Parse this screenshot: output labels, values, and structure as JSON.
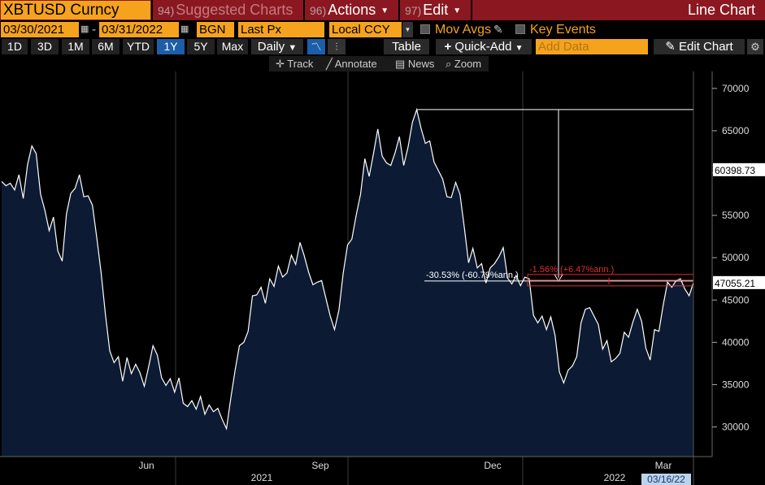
{
  "toolbar": {
    "ticker": "XBTUSD Curncy",
    "suggested_num": "94)",
    "suggested_label": "Suggested Charts",
    "actions_num": "96)",
    "actions_label": "Actions",
    "edit_num": "97)",
    "edit_label": "Edit",
    "title": "Line Chart"
  },
  "settings": {
    "start_date": "03/30/2021",
    "separator": "-",
    "end_date": "03/31/2022",
    "source": "BGN",
    "field": "Last Px",
    "currency": "Local CCY",
    "mov_avgs": "Mov Avgs",
    "key_events": "Key Events"
  },
  "periods": [
    "1D",
    "3D",
    "1M",
    "6M",
    "YTD",
    "1Y",
    "5Y",
    "Max"
  ],
  "selected_period": "1Y",
  "frequency": "Daily",
  "table_label": "Table",
  "quick_add_label": "Quick-Add",
  "add_data_placeholder": "Add Data",
  "edit_chart_label": "Edit Chart",
  "tools": {
    "track": "Track",
    "annotate": "Annotate",
    "news": "News",
    "zoom": "Zoom"
  },
  "colors": {
    "accent": "#f5a31c",
    "title_bar": "#8b1820",
    "selected": "#1c5ea8",
    "area_fill": "#0c1b33",
    "line": "#ffffff",
    "annotation_red": "#e03030"
  },
  "chart_data": {
    "type": "area",
    "series": [
      {
        "values": [
          59000,
          58500,
          58800,
          58000,
          59800,
          57000,
          61000,
          63200,
          62300,
          57500,
          55600,
          53200,
          54800,
          50800,
          49600,
          55200,
          57600,
          58200,
          59800,
          57200,
          57300,
          56200,
          52400,
          48300,
          43300,
          39000,
          37600,
          38300,
          35400,
          38200,
          36300,
          37400,
          36400,
          34800,
          37100,
          39600,
          38500,
          35800,
          34900,
          35700,
          34100,
          35800,
          32800,
          32400,
          33100,
          32100,
          33600,
          31500,
          32600,
          31800,
          32200,
          30900,
          29800,
          33400,
          36700,
          39600,
          40000,
          41300,
          45500,
          45600,
          46500,
          44600,
          47500,
          46600,
          49000,
          47700,
          48200,
          50300,
          49200,
          51800,
          50200,
          48300,
          46800,
          47100,
          47300,
          45200,
          43100,
          41500,
          43800,
          48200,
          51500,
          52200,
          55000,
          57500,
          61700,
          59600,
          62300,
          65200,
          62000,
          61200,
          60900,
          62400,
          64300,
          60900,
          63100,
          66000,
          67500,
          65300,
          63500,
          63800,
          61300,
          60300,
          59300,
          57200,
          57100,
          58900,
          57500,
          53600,
          49400,
          51100,
          48800,
          49300,
          47000,
          48800,
          49300,
          50100,
          51200,
          47600,
          46900,
          47900,
          46700,
          47700,
          47500,
          43200,
          42300,
          43100,
          41500,
          43000,
          40800,
          36500,
          35200,
          36700,
          37200,
          38300,
          42300,
          43900,
          44100,
          43100,
          42100,
          39200,
          40200,
          37700,
          38100,
          38700,
          41200,
          40600,
          42400,
          43900,
          42500,
          39300,
          37900,
          41500,
          41300,
          44400,
          47100,
          46500,
          47300,
          47500,
          46300,
          45500,
          47055
        ],
        "dates": [
          "03/30/2021",
          "03/31/2022"
        ]
      }
    ],
    "x_labels": [
      "Jun",
      "Sep",
      "Dec",
      "Mar"
    ],
    "year_labels": [
      "2021",
      "2022"
    ],
    "ylim": [
      26500,
      72000
    ],
    "y_ticks": [
      30000,
      35000,
      40000,
      45000,
      50000,
      55000,
      60000,
      65000,
      70000
    ],
    "price_labels": {
      "reference": "60398.73",
      "last": "47055.21"
    },
    "annotation_main": "-30.53% (-60.79%ann.)",
    "annotation_red": "-1.56% (+6.47%ann.)",
    "crosshair_date": "03/16/22",
    "grid": false
  }
}
